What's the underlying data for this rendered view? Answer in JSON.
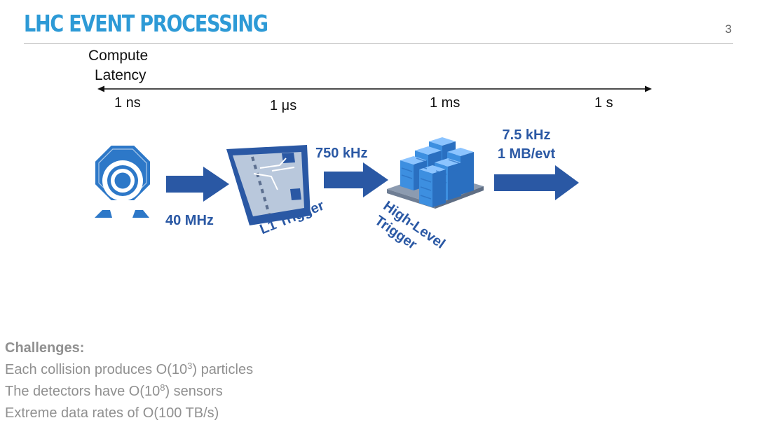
{
  "header": {
    "title": "LHC EVENT PROCESSING",
    "page_number": "3"
  },
  "latency_axis": {
    "label_line1": "Compute",
    "label_line2": "Latency",
    "ticks": [
      "1 ns",
      "1 μs",
      "1 ms",
      "1 s"
    ]
  },
  "pipeline": {
    "rate_detector": "40 MHz",
    "rate_l1": "750 kHz",
    "rate_out_line1": "7.5 kHz",
    "rate_out_line2": "1 MB/evt",
    "stage_l1": "L1 Trigger",
    "stage_hlt_line1": "High-Level",
    "stage_hlt_line2": "Trigger"
  },
  "challenges": {
    "heading": "Challenges:",
    "item1_pre": "Each collision produces O(10",
    "item1_sup": "3",
    "item1_post": ") particles",
    "item2_pre": "The detectors have O(10",
    "item2_sup": "8",
    "item2_post": ") sensors",
    "item3": "Extreme data rates of O(100 TB/s)"
  },
  "colors": {
    "title": "#2d9ad6",
    "arrow": "#2a58a4",
    "detector": "#2d78c8",
    "server": "#3d8fe0",
    "text_muted": "#909090"
  }
}
